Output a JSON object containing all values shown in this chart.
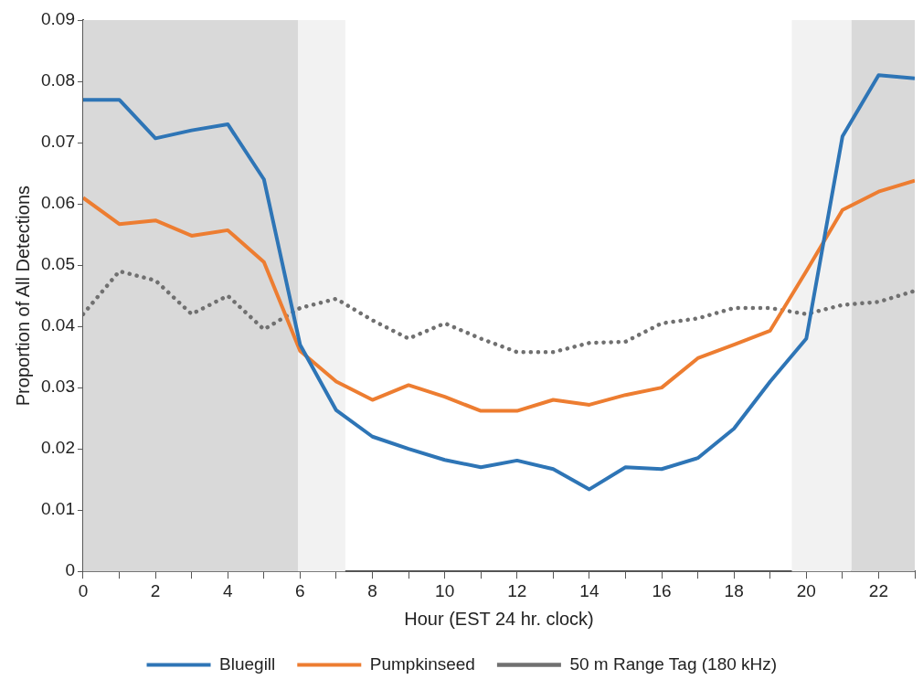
{
  "chart_data": {
    "type": "line",
    "xlabel": "Hour (EST 24 hr. clock)",
    "ylabel": "Proportion of All Detections",
    "x": [
      0,
      1,
      2,
      3,
      4,
      5,
      6,
      7,
      8,
      9,
      10,
      11,
      12,
      13,
      14,
      15,
      16,
      17,
      18,
      19,
      20,
      21,
      22,
      23
    ],
    "series": [
      {
        "name": "Bluegill",
        "color": "#2e75b6",
        "line_style": "solid",
        "values": [
          0.077,
          0.077,
          0.0707,
          0.072,
          0.073,
          0.064,
          0.037,
          0.0263,
          0.022,
          0.02,
          0.0182,
          0.017,
          0.0181,
          0.0167,
          0.0134,
          0.017,
          0.0167,
          0.0185,
          0.0233,
          0.031,
          0.038,
          0.071,
          0.081,
          0.0805
        ]
      },
      {
        "name": "Pumpkinseed",
        "color": "#ed7d31",
        "line_style": "solid",
        "values": [
          0.061,
          0.0567,
          0.0573,
          0.0548,
          0.0557,
          0.0505,
          0.036,
          0.031,
          0.028,
          0.0304,
          0.0285,
          0.0262,
          0.0262,
          0.028,
          0.0272,
          0.0288,
          0.03,
          0.0348,
          0.037,
          0.0393,
          0.049,
          0.059,
          0.062,
          0.0638
        ]
      },
      {
        "name": "50 m Range Tag (180 kHz)",
        "color": "#707070",
        "line_style": "dotted",
        "values": [
          0.042,
          0.049,
          0.0475,
          0.042,
          0.045,
          0.0395,
          0.043,
          0.0445,
          0.041,
          0.038,
          0.0405,
          0.038,
          0.0358,
          0.0358,
          0.0373,
          0.0375,
          0.0405,
          0.0413,
          0.043,
          0.043,
          0.042,
          0.0435,
          0.044,
          0.0458
        ]
      }
    ],
    "xlim": [
      0,
      23
    ],
    "xticks": [
      0,
      {
        "value": 1,
        "label": null
      },
      2,
      {
        "value": 3,
        "label": null
      },
      4,
      {
        "value": 5,
        "label": null
      },
      6,
      {
        "value": 7,
        "label": null
      },
      8,
      {
        "value": 9,
        "label": null
      },
      10,
      {
        "value": 11,
        "label": null
      },
      12,
      {
        "value": 13,
        "label": null
      },
      14,
      {
        "value": 15,
        "label": null
      },
      16,
      {
        "value": 17,
        "label": null
      },
      18,
      {
        "value": 19,
        "label": null
      },
      20,
      {
        "value": 21,
        "label": null
      },
      22,
      {
        "value": 23,
        "label": null
      }
    ],
    "ylim": [
      0,
      0.09
    ],
    "yticks": [
      0,
      0.01,
      0.02,
      0.03,
      0.04,
      0.05,
      0.06,
      0.07,
      0.08,
      0.09
    ],
    "bands": [
      {
        "axis": "x",
        "from": 0,
        "to": 5.94,
        "color": "#d9d9d9"
      },
      {
        "axis": "x",
        "from": 5.94,
        "to": 7.25,
        "color": "#f2f2f2"
      },
      {
        "axis": "x",
        "from": 19.6,
        "to": 21.25,
        "color": "#f2f2f2"
      },
      {
        "axis": "x",
        "from": 21.25,
        "to": 23,
        "color": "#d9d9d9"
      }
    ],
    "grid": false,
    "legend": "bottom",
    "marker": "none"
  }
}
